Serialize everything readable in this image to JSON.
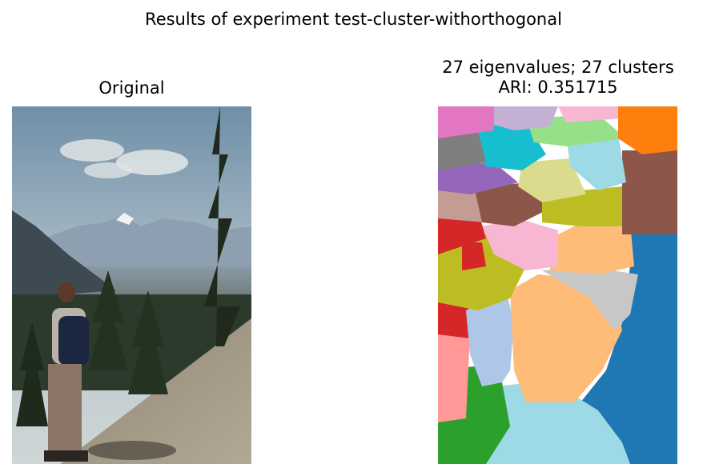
{
  "figure": {
    "suptitle": "Results of experiment test-cluster-withorthogonal"
  },
  "left_panel": {
    "title": "Original",
    "image_description": "photo: hiker with backpack on rocky slope, pine trees, mountain valley"
  },
  "right_panel": {
    "title_line1": "27 eigenvalues; 27 clusters",
    "title_line2": "ARI: 0.351715",
    "num_clusters": 27
  },
  "colors": {
    "tab_blue": "#1f77b4",
    "tab_orange": "#ff7f0e",
    "tab_green": "#2ca02c",
    "tab_red": "#d62728",
    "tab_purple": "#9467bd",
    "tab_brown": "#8c564b",
    "tab_pink": "#e377c2",
    "tab_gray": "#7f7f7f",
    "tab_olive": "#bcbd22",
    "tab_cyan": "#17becf",
    "light_blue": "#aec7e8",
    "light_orange": "#ffbb78",
    "light_green": "#98df8a",
    "light_red": "#ff9896",
    "light_purple": "#c5b0d5",
    "light_brown": "#c49c94",
    "light_pink": "#f7b6d2",
    "light_gray": "#c7c7c7",
    "light_olive": "#dbdb8d",
    "light_cyan": "#9edae5"
  }
}
